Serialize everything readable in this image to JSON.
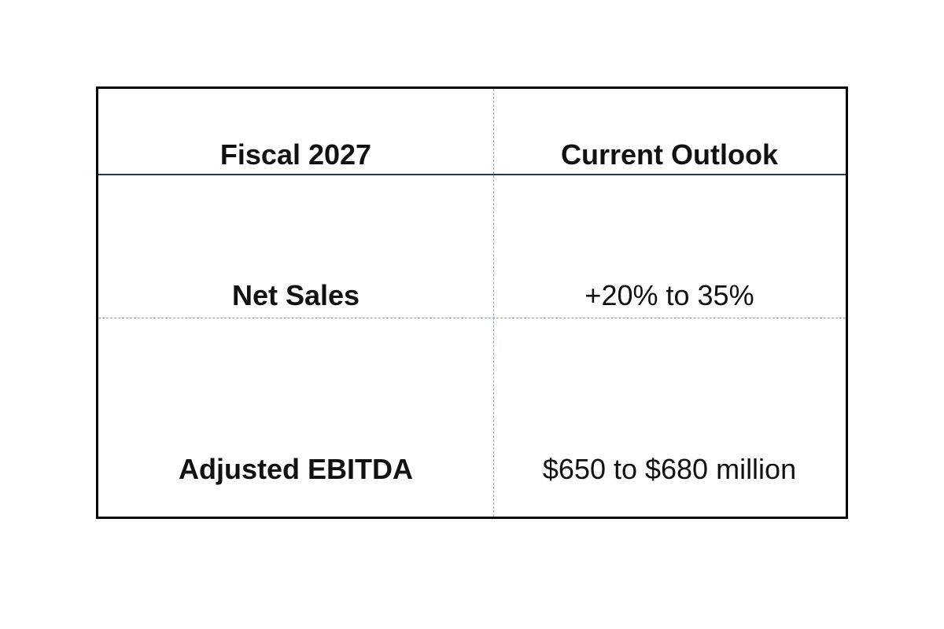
{
  "table": {
    "header": {
      "col1": "Fiscal 2027",
      "col2": "Current Outlook"
    },
    "rows": [
      {
        "label": "Net Sales",
        "value": "+20% to 35%"
      },
      {
        "label": "Adjusted EBITDA",
        "value": "$650 to $680 million"
      }
    ]
  },
  "colors": {
    "border": "#000000",
    "header_rule": "#1f3b57",
    "gridline": "#8aa0b6"
  }
}
